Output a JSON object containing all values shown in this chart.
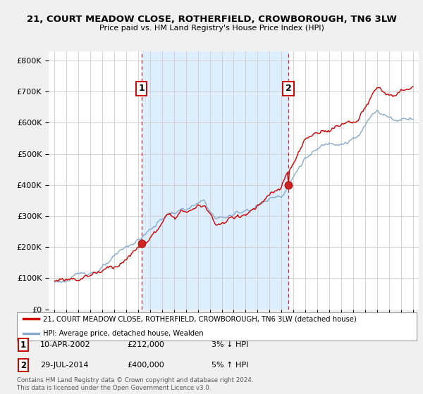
{
  "title": "21, COURT MEADOW CLOSE, ROTHERFIELD, CROWBOROUGH, TN6 3LW",
  "subtitle": "Price paid vs. HM Land Registry's House Price Index (HPI)",
  "ylabel_ticks": [
    "£0",
    "£100K",
    "£200K",
    "£300K",
    "£400K",
    "£500K",
    "£600K",
    "£700K",
    "£800K"
  ],
  "ytick_values": [
    0,
    100000,
    200000,
    300000,
    400000,
    500000,
    600000,
    700000,
    800000
  ],
  "ylim": [
    0,
    830000
  ],
  "sale1": {
    "date_num": 2002.27,
    "price": 212000,
    "label": "1",
    "pct": "3%",
    "dir": "↓",
    "date_str": "10-APR-2002"
  },
  "sale2": {
    "date_num": 2014.57,
    "price": 400000,
    "label": "2",
    "pct": "5%",
    "dir": "↑",
    "date_str": "29-JUL-2014"
  },
  "line_color_property": "#cc0000",
  "line_color_hpi": "#88aacc",
  "shade_color": "#ddeeff",
  "background_color": "#f0f0f0",
  "plot_bg": "#ffffff",
  "legend_property": "21, COURT MEADOW CLOSE, ROTHERFIELD, CROWBOROUGH, TN6 3LW (detached house)",
  "legend_hpi": "HPI: Average price, detached house, Wealden",
  "footer": "Contains HM Land Registry data © Crown copyright and database right 2024.\nThis data is licensed under the Open Government Licence v3.0.",
  "xlim_start": 1994.5,
  "xlim_end": 2025.5
}
